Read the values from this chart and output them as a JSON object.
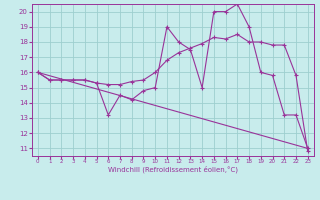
{
  "xlabel": "Windchill (Refroidissement éolien,°C)",
  "bg_color": "#c8ecec",
  "grid_color": "#9ecfcf",
  "line_color": "#993399",
  "xlim": [
    -0.5,
    23.5
  ],
  "ylim": [
    10.5,
    20.5
  ],
  "xticks": [
    0,
    1,
    2,
    3,
    4,
    5,
    6,
    7,
    8,
    9,
    10,
    11,
    12,
    13,
    14,
    15,
    16,
    17,
    18,
    19,
    20,
    21,
    22,
    23
  ],
  "yticks": [
    11,
    12,
    13,
    14,
    15,
    16,
    17,
    18,
    19,
    20
  ],
  "line1_x": [
    0,
    1,
    2,
    3,
    4,
    5,
    6,
    7,
    8,
    9,
    10,
    11,
    12,
    13,
    14,
    15,
    16,
    17,
    18,
    19,
    20,
    21,
    22,
    23
  ],
  "line1_y": [
    16.0,
    15.5,
    15.5,
    15.5,
    15.5,
    15.3,
    15.2,
    15.2,
    15.4,
    15.5,
    16.0,
    16.8,
    17.3,
    17.6,
    17.9,
    18.3,
    18.2,
    18.5,
    18.0,
    18.0,
    17.8,
    17.8,
    15.8,
    10.8
  ],
  "line2_x": [
    0,
    1,
    2,
    3,
    4,
    5,
    6,
    7,
    8,
    9,
    10,
    11,
    12,
    13,
    14,
    15,
    16,
    17,
    18,
    19,
    20,
    21,
    22,
    23
  ],
  "line2_y": [
    16.0,
    15.5,
    15.5,
    15.5,
    15.5,
    15.3,
    13.2,
    14.5,
    14.2,
    14.8,
    15.0,
    19.0,
    18.0,
    17.5,
    15.0,
    20.0,
    20.0,
    20.5,
    19.0,
    16.0,
    15.8,
    13.2,
    13.2,
    11.0
  ],
  "line3_x": [
    0,
    23
  ],
  "line3_y": [
    16.0,
    11.0
  ],
  "marker": "+"
}
